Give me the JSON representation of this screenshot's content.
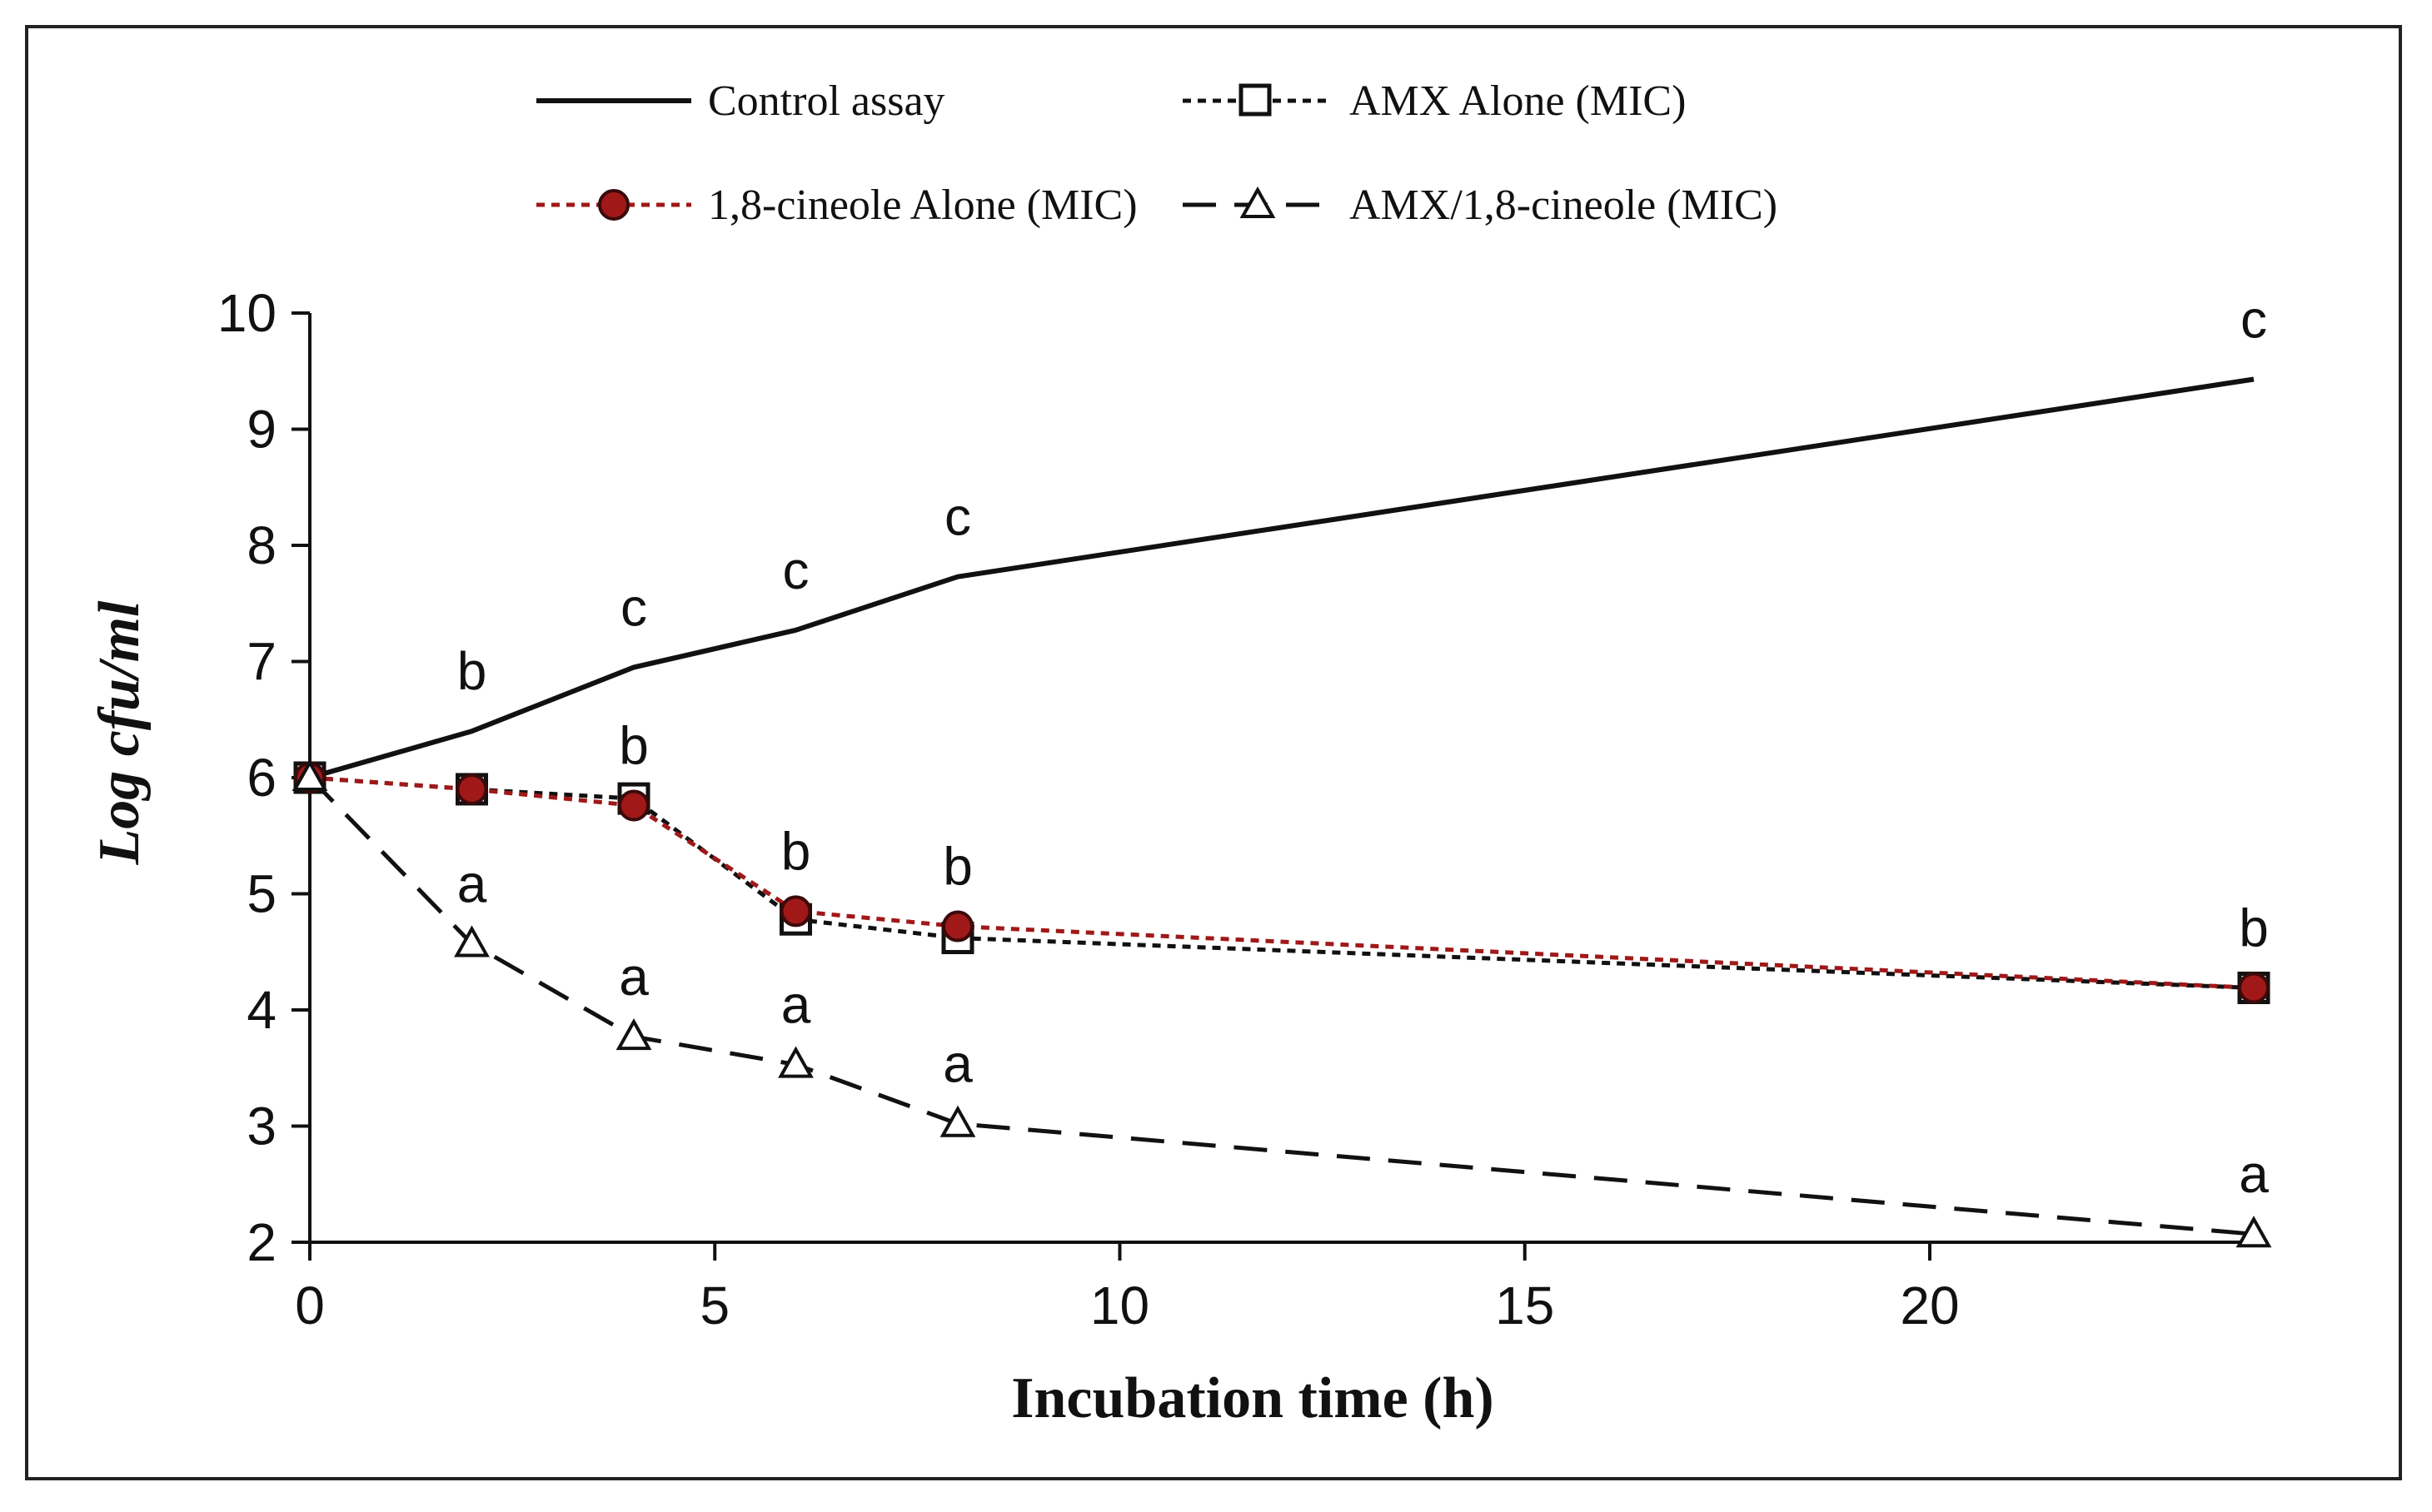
{
  "chart_data": {
    "type": "line",
    "title": "",
    "xlabel": "Incubation time (h)",
    "ylabel": "Log cfu/ml",
    "xlim": [
      0,
      24
    ],
    "ylim": [
      2,
      10
    ],
    "xticks": [
      0,
      5,
      10,
      15,
      20
    ],
    "yticks": [
      2,
      3,
      4,
      5,
      6,
      7,
      8,
      9,
      10
    ],
    "grid": false,
    "legend_position": "top",
    "series": [
      {
        "name": "Control assay",
        "color": "#111111",
        "line_style": "solid",
        "marker": "none",
        "x": [
          0,
          2,
          4,
          6,
          8,
          24
        ],
        "y": [
          6.0,
          6.4,
          6.95,
          7.27,
          7.73,
          9.43
        ],
        "labels": [
          "",
          "b",
          "c",
          "c",
          "c",
          "c"
        ]
      },
      {
        "name": "AMX Alone (MIC)",
        "color": "#111111",
        "line_style": "dotted",
        "marker": "square-open",
        "x": [
          0,
          2,
          4,
          6,
          8,
          24
        ],
        "y": [
          6.0,
          5.9,
          5.82,
          4.78,
          4.62,
          4.19
        ],
        "labels": [
          "",
          "",
          "",
          "",
          "",
          ""
        ]
      },
      {
        "name": "1,8-cineole Alone (MIC)",
        "color": "#a01818",
        "line_style": "dotted",
        "marker": "circle-filled",
        "x": [
          0,
          2,
          4,
          6,
          8,
          24
        ],
        "y": [
          6.0,
          5.9,
          5.76,
          4.85,
          4.72,
          4.19
        ],
        "labels": [
          "",
          "",
          "b",
          "b",
          "b",
          "b"
        ]
      },
      {
        "name": "AMX/1,8-cineole (MIC)",
        "color": "#111111",
        "line_style": "dashed",
        "marker": "triangle-open",
        "x": [
          0,
          2,
          4,
          6,
          8,
          24
        ],
        "y": [
          6.0,
          4.57,
          3.77,
          3.53,
          3.02,
          2.07
        ],
        "labels": [
          "",
          "a",
          "a",
          "a",
          "a",
          "a"
        ]
      }
    ]
  }
}
